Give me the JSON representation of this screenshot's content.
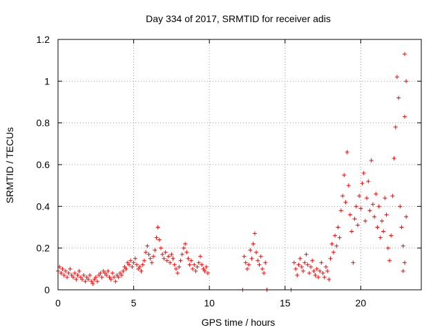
{
  "chart_data": {
    "type": "scatter",
    "title": "Day 334 of 2017, SRMTID for receiver adis",
    "xlabel": "GPS time / hours",
    "ylabel": "SRMTID / TECUs",
    "xlim": [
      0,
      24
    ],
    "ylim": [
      0,
      1.2
    ],
    "grid": true,
    "legend": "none",
    "marker": "+",
    "color": "#ff0000",
    "xticks": [
      0,
      5,
      10,
      15,
      20
    ],
    "xtick_labels": [
      "0",
      "5",
      "10",
      "15",
      "20"
    ],
    "yticks": [
      0,
      0.2,
      0.4,
      0.6,
      0.8,
      1.0,
      1.2
    ],
    "ytick_labels": [
      "0",
      "0.2",
      "0.4",
      "0.6",
      "0.8",
      "1",
      "1.2"
    ],
    "series": [
      {
        "name": "SRMTID",
        "points": [
          [
            0.0,
            0.09
          ],
          [
            0.1,
            0.11
          ],
          [
            0.2,
            0.08
          ],
          [
            0.3,
            0.1
          ],
          [
            0.4,
            0.07
          ],
          [
            0.5,
            0.09
          ],
          [
            0.6,
            0.06
          ],
          [
            0.7,
            0.08
          ],
          [
            0.8,
            0.1
          ],
          [
            0.9,
            0.07
          ],
          [
            1.0,
            0.06
          ],
          [
            1.1,
            0.08
          ],
          [
            1.2,
            0.05
          ],
          [
            1.3,
            0.07
          ],
          [
            1.4,
            0.09
          ],
          [
            1.5,
            0.06
          ],
          [
            1.6,
            0.05
          ],
          [
            1.7,
            0.07
          ],
          [
            1.8,
            0.04
          ],
          [
            1.9,
            0.06
          ],
          [
            2.0,
            0.05
          ],
          [
            2.1,
            0.07
          ],
          [
            2.2,
            0.04
          ],
          [
            2.3,
            0.03
          ],
          [
            2.4,
            0.05
          ],
          [
            2.5,
            0.06
          ],
          [
            2.6,
            0.04
          ],
          [
            2.7,
            0.07
          ],
          [
            2.8,
            0.08
          ],
          [
            2.9,
            0.06
          ],
          [
            3.0,
            0.09
          ],
          [
            3.1,
            0.08
          ],
          [
            3.2,
            0.07
          ],
          [
            3.3,
            0.09
          ],
          [
            3.4,
            0.06
          ],
          [
            3.5,
            0.05
          ],
          [
            3.6,
            0.08
          ],
          [
            3.7,
            0.06
          ],
          [
            3.8,
            0.04
          ],
          [
            3.9,
            0.07
          ],
          [
            4.0,
            0.06
          ],
          [
            4.1,
            0.08
          ],
          [
            4.2,
            0.07
          ],
          [
            4.3,
            0.09
          ],
          [
            4.4,
            0.11
          ],
          [
            4.5,
            0.1
          ],
          [
            4.6,
            0.13
          ],
          [
            4.7,
            0.12
          ],
          [
            4.8,
            0.14
          ],
          [
            4.9,
            0.11
          ],
          [
            5.0,
            0.13
          ],
          [
            5.1,
            0.15
          ],
          [
            5.2,
            0.12
          ],
          [
            5.3,
            0.1
          ],
          [
            5.4,
            0.11
          ],
          [
            5.5,
            0.09
          ],
          [
            5.6,
            0.12
          ],
          [
            5.7,
            0.14
          ],
          [
            5.8,
            0.18
          ],
          [
            5.9,
            0.21
          ],
          [
            6.0,
            0.17
          ],
          [
            6.1,
            0.15
          ],
          [
            6.2,
            0.13
          ],
          [
            6.3,
            0.16
          ],
          [
            6.4,
            0.19
          ],
          [
            6.5,
            0.25
          ],
          [
            6.6,
            0.3
          ],
          [
            6.7,
            0.24
          ],
          [
            6.8,
            0.2
          ],
          [
            6.9,
            0.17
          ],
          [
            7.0,
            0.15
          ],
          [
            7.1,
            0.18
          ],
          [
            7.2,
            0.14
          ],
          [
            7.3,
            0.16
          ],
          [
            7.4,
            0.13
          ],
          [
            7.5,
            0.17
          ],
          [
            7.6,
            0.15
          ],
          [
            7.7,
            0.12
          ],
          [
            7.8,
            0.1
          ],
          [
            7.9,
            0.08
          ],
          [
            8.0,
            0.11
          ],
          [
            8.1,
            0.14
          ],
          [
            8.2,
            0.17
          ],
          [
            8.3,
            0.2
          ],
          [
            8.4,
            0.22
          ],
          [
            8.5,
            0.18
          ],
          [
            8.6,
            0.15
          ],
          [
            8.7,
            0.12
          ],
          [
            8.8,
            0.14
          ],
          [
            8.9,
            0.1
          ],
          [
            9.0,
            0.12
          ],
          [
            9.1,
            0.09
          ],
          [
            9.2,
            0.11
          ],
          [
            9.3,
            0.13
          ],
          [
            9.4,
            0.16
          ],
          [
            9.5,
            0.12
          ],
          [
            9.6,
            0.1
          ],
          [
            9.7,
            0.09
          ],
          [
            9.8,
            0.11
          ],
          [
            9.9,
            0.08
          ],
          [
            12.2,
            0.0
          ],
          [
            12.3,
            0.16
          ],
          [
            12.4,
            0.13
          ],
          [
            12.5,
            0.1
          ],
          [
            12.6,
            0.12
          ],
          [
            12.7,
            0.19
          ],
          [
            12.8,
            0.15
          ],
          [
            12.9,
            0.22
          ],
          [
            13.0,
            0.27
          ],
          [
            13.1,
            0.18
          ],
          [
            13.2,
            0.14
          ],
          [
            13.3,
            0.12
          ],
          [
            13.4,
            0.16
          ],
          [
            13.5,
            0.1
          ],
          [
            13.6,
            0.08
          ],
          [
            13.7,
            0.13
          ],
          [
            13.8,
            0.0
          ],
          [
            15.4,
            0.0
          ],
          [
            15.6,
            0.13
          ],
          [
            15.7,
            0.1
          ],
          [
            15.8,
            0.07
          ],
          [
            15.9,
            0.12
          ],
          [
            16.0,
            0.15
          ],
          [
            16.1,
            0.11
          ],
          [
            16.2,
            0.09
          ],
          [
            16.3,
            0.13
          ],
          [
            16.4,
            0.17
          ],
          [
            16.5,
            0.12
          ],
          [
            16.6,
            0.08
          ],
          [
            16.7,
            0.11
          ],
          [
            16.8,
            0.14
          ],
          [
            16.9,
            0.09
          ],
          [
            17.0,
            0.07
          ],
          [
            17.1,
            0.1
          ],
          [
            17.2,
            0.06
          ],
          [
            17.3,
            0.09
          ],
          [
            17.4,
            0.13
          ],
          [
            17.5,
            0.08
          ],
          [
            17.6,
            0.06
          ],
          [
            17.7,
            0.11
          ],
          [
            17.8,
            0.09
          ],
          [
            17.9,
            0.05
          ],
          [
            18.0,
            0.15
          ],
          [
            18.1,
            0.22
          ],
          [
            18.2,
            0.18
          ],
          [
            18.3,
            0.26
          ],
          [
            18.4,
            0.21
          ],
          [
            18.5,
            0.3
          ],
          [
            18.6,
            0.25
          ],
          [
            18.7,
            0.38
          ],
          [
            18.8,
            0.45
          ],
          [
            18.9,
            0.55
          ],
          [
            19.0,
            0.42
          ],
          [
            19.1,
            0.66
          ],
          [
            19.2,
            0.5
          ],
          [
            19.3,
            0.36
          ],
          [
            19.4,
            0.28
          ],
          [
            19.5,
            0.13
          ],
          [
            19.6,
            0.34
          ],
          [
            19.7,
            0.4
          ],
          [
            19.8,
            0.31
          ],
          [
            19.9,
            0.45
          ],
          [
            20.0,
            0.39
          ],
          [
            20.1,
            0.51
          ],
          [
            20.2,
            0.56
          ],
          [
            20.3,
            0.33
          ],
          [
            20.4,
            0.44
          ],
          [
            20.5,
            0.52
          ],
          [
            20.6,
            0.38
          ],
          [
            20.7,
            0.62
          ],
          [
            20.8,
            0.41
          ],
          [
            20.9,
            0.35
          ],
          [
            21.0,
            0.46
          ],
          [
            21.1,
            0.3
          ],
          [
            21.2,
            0.4
          ],
          [
            21.3,
            0.25
          ],
          [
            21.4,
            0.33
          ],
          [
            21.5,
            0.28
          ],
          [
            21.6,
            0.44
          ],
          [
            21.7,
            0.36
          ],
          [
            21.8,
            0.2
          ],
          [
            21.9,
            0.14
          ],
          [
            22.0,
            0.26
          ],
          [
            22.1,
            0.45
          ],
          [
            22.2,
            0.63
          ],
          [
            22.3,
            0.78
          ],
          [
            22.4,
            1.02
          ],
          [
            22.5,
            0.92
          ],
          [
            22.6,
            0.4
          ],
          [
            22.7,
            0.3
          ],
          [
            22.8,
            0.21
          ],
          [
            22.9,
            0.13
          ],
          [
            23.0,
            0.35
          ],
          [
            22.9,
            1.13
          ],
          [
            22.9,
            0.83
          ],
          [
            22.8,
            0.09
          ],
          [
            23.0,
            1.0
          ]
        ]
      }
    ]
  }
}
